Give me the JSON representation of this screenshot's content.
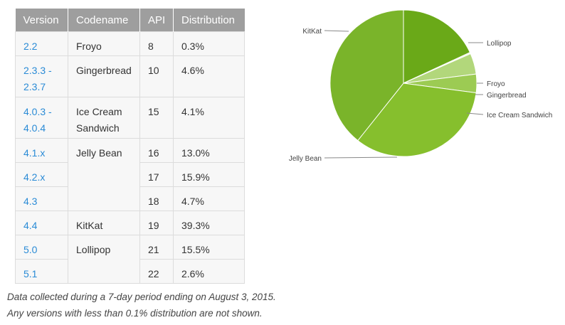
{
  "table": {
    "headers": [
      "Version",
      "Codename",
      "API",
      "Distribution"
    ],
    "rows": [
      {
        "version": "2.2",
        "codename": "Froyo",
        "api": "8",
        "distribution": "0.3%"
      },
      {
        "version": "2.3.3 - 2.3.7",
        "codename": "Gingerbread",
        "api": "10",
        "distribution": "4.6%"
      },
      {
        "version": "4.0.3 - 4.0.4",
        "codename": "Ice Cream Sandwich",
        "api": "15",
        "distribution": "4.1%"
      },
      {
        "version": "4.1.x",
        "codename": "Jelly Bean",
        "api": "16",
        "distribution": "13.0%"
      },
      {
        "version": "4.2.x",
        "codename": "Jelly Bean",
        "api": "17",
        "distribution": "15.9%"
      },
      {
        "version": "4.3",
        "codename": "Jelly Bean",
        "api": "18",
        "distribution": "4.7%"
      },
      {
        "version": "4.4",
        "codename": "KitKat",
        "api": "19",
        "distribution": "39.3%"
      },
      {
        "version": "5.0",
        "codename": "Lollipop",
        "api": "21",
        "distribution": "15.5%"
      },
      {
        "version": "5.1",
        "codename": "Lollipop",
        "api": "22",
        "distribution": "2.6%"
      }
    ]
  },
  "notes": [
    "Data collected during a 7-day period ending on August 3, 2015.",
    "Any versions with less than 0.1% distribution are not shown."
  ],
  "colors": {
    "header_bg": "#9e9e9e",
    "version_link": "#2a8bd6",
    "row_bg": "#f7f7f7"
  },
  "chart_data": {
    "type": "pie",
    "labels": [
      "Lollipop",
      "Froyo",
      "Gingerbread",
      "Ice Cream Sandwich",
      "Jelly Bean",
      "KitKat"
    ],
    "values": [
      18.1,
      0.3,
      4.6,
      4.1,
      33.6,
      39.3
    ],
    "colors": [
      "#6aa918",
      "#ecf5de",
      "#b2d77b",
      "#9ccb53",
      "#86bf2d",
      "#7ab42a"
    ],
    "start": "top, clockwise",
    "legend": "callout labels"
  }
}
